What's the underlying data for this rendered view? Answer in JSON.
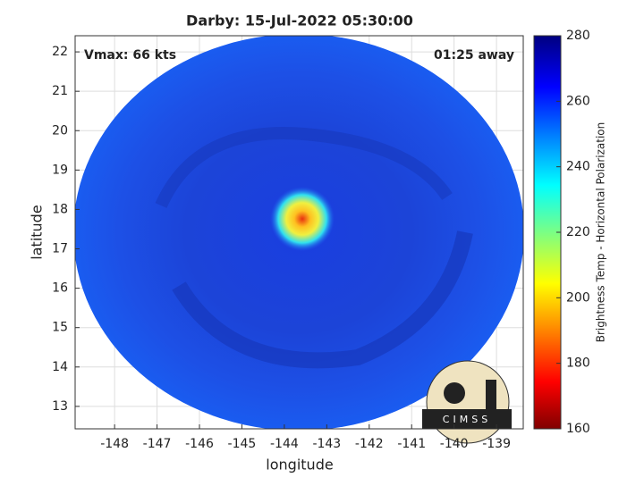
{
  "chart_data": {
    "type": "image",
    "title": "Darby: 15-Jul-2022 05:30:00",
    "annotations": [
      "Vmax: 66 kts",
      "01:25 away"
    ],
    "xlabel": "longitude",
    "ylabel": "latitude",
    "xlim": [
      -148.93,
      -138.37
    ],
    "ylim": [
      12.43,
      22.41
    ],
    "xticks": [
      -148,
      -147,
      -146,
      -145,
      -144,
      -143,
      -142,
      -141,
      -140,
      -139
    ],
    "yticks": [
      13,
      14,
      15,
      16,
      17,
      18,
      19,
      20,
      21,
      22
    ],
    "grid": true,
    "colorbar": {
      "label": "Brightness Temp - Horizontal Polarization",
      "lim": [
        160,
        280
      ],
      "ticks": [
        160,
        180,
        200,
        220,
        240,
        260,
        280
      ]
    },
    "logo": "CIMSS"
  }
}
